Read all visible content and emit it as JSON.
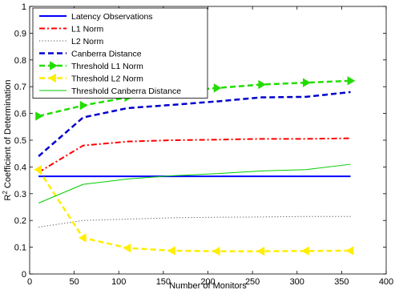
{
  "chart_data": {
    "type": "line",
    "title": "",
    "xlabel": "Number of Monitors",
    "ylabel_main": "R",
    "ylabel_sup": "2",
    "ylabel_rest": " Coefficient of Determination",
    "xlim": [
      0,
      400
    ],
    "ylim": [
      0,
      1
    ],
    "xticks": [
      "0",
      "50",
      "100",
      "150",
      "200",
      "250",
      "300",
      "350",
      "400"
    ],
    "yticks": [
      "0",
      "0.1",
      "0.2",
      "0.3",
      "0.4",
      "0.5",
      "0.6",
      "0.7",
      "0.8",
      "0.9",
      "1"
    ],
    "grid": false,
    "legend_position": "top-left",
    "x": [
      10,
      60,
      110,
      160,
      210,
      260,
      310,
      360
    ],
    "series": [
      {
        "name": "Latency Observations",
        "color": "#0000ff",
        "dash": "solid",
        "width": 2,
        "marker": "none",
        "values": [
          0.365,
          0.365,
          0.365,
          0.365,
          0.365,
          0.365,
          0.365,
          0.365
        ]
      },
      {
        "name": "L1 Norm",
        "color": "#ff0000",
        "dash": "dashdot",
        "width": 2,
        "marker": "none",
        "values": [
          0.38,
          0.48,
          0.495,
          0.5,
          0.502,
          0.505,
          0.505,
          0.507
        ]
      },
      {
        "name": "L2 Norm",
        "color": "#555555",
        "dash": "dotted",
        "width": 1,
        "marker": "none",
        "values": [
          0.175,
          0.2,
          0.205,
          0.21,
          0.212,
          0.213,
          0.215,
          0.215
        ]
      },
      {
        "name": "Canberra Distance",
        "color": "#0000cc",
        "dash": "dashed",
        "width": 2.5,
        "marker": "none",
        "values": [
          0.44,
          0.585,
          0.62,
          0.632,
          0.645,
          0.66,
          0.662,
          0.68
        ]
      },
      {
        "name": "Threshold L1 Norm",
        "color": "#22dd00",
        "dash": "dashed",
        "width": 2.5,
        "marker": "triangle-right",
        "values": [
          0.59,
          0.63,
          0.66,
          0.68,
          0.695,
          0.708,
          0.715,
          0.722
        ]
      },
      {
        "name": "Threshold L2 Norm",
        "color": "#ffee00",
        "dash": "dashed",
        "width": 2.5,
        "marker": "triangle-left",
        "values": [
          0.39,
          0.135,
          0.097,
          0.087,
          0.085,
          0.085,
          0.086,
          0.087
        ]
      },
      {
        "name": "Threshold Canberra Distance",
        "color": "#00cc00",
        "dash": "solid",
        "width": 1,
        "marker": "none",
        "values": [
          0.265,
          0.335,
          0.355,
          0.367,
          0.375,
          0.385,
          0.39,
          0.41
        ]
      }
    ]
  }
}
